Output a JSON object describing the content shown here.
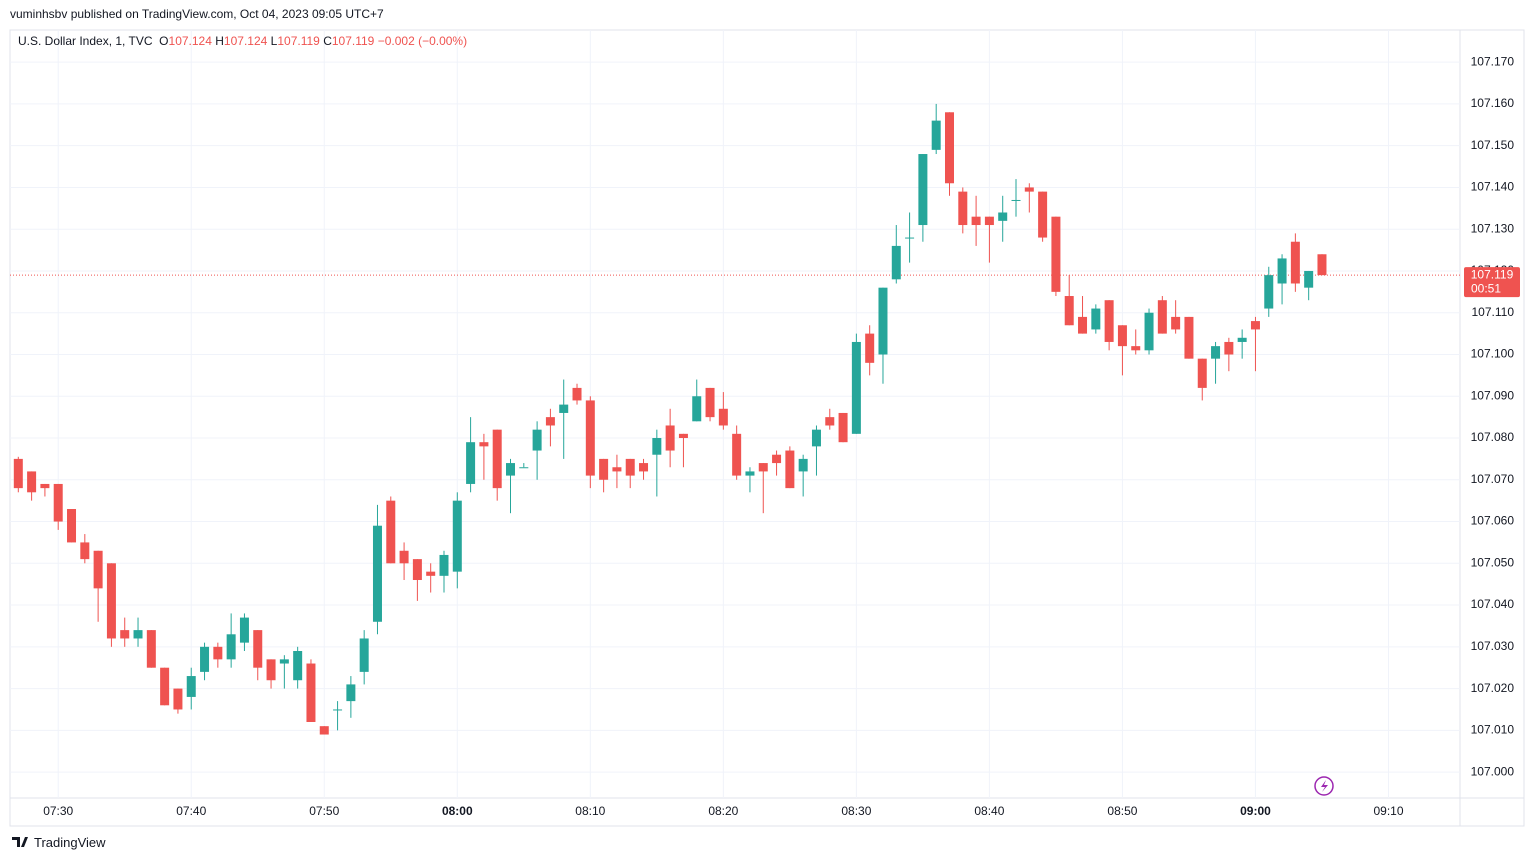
{
  "header": {
    "publisher": "vuminhsbv published on TradingView.com, Oct 04, 2023 09:05 UTC+7"
  },
  "legend": {
    "symbol": "U.S. Dollar Index, 1, TVC",
    "o_label": "O",
    "o": "107.124",
    "h_label": "H",
    "h": "107.124",
    "l_label": "L",
    "l": "107.119",
    "c_label": "C",
    "c": "107.119",
    "change": "−0.002 (−0.00%)"
  },
  "footer": {
    "brand": "TradingView"
  },
  "chart_data": {
    "type": "candlestick",
    "up_color": "#26a69a",
    "down_color": "#ef5350",
    "grid": true,
    "x": [
      "07:27",
      "07:28",
      "07:29",
      "07:30",
      "07:31",
      "07:32",
      "07:33",
      "07:34",
      "07:35",
      "07:36",
      "07:37",
      "07:38",
      "07:39",
      "07:40",
      "07:41",
      "07:42",
      "07:43",
      "07:44",
      "07:45",
      "07:46",
      "07:47",
      "07:48",
      "07:49",
      "07:50",
      "07:51",
      "07:52",
      "07:53",
      "07:54",
      "07:55",
      "07:56",
      "07:57",
      "07:58",
      "07:59",
      "08:00",
      "08:01",
      "08:02",
      "08:03",
      "08:04",
      "08:05",
      "08:06",
      "08:07",
      "08:08",
      "08:09",
      "08:10",
      "08:11",
      "08:12",
      "08:13",
      "08:14",
      "08:15",
      "08:16",
      "08:17",
      "08:18",
      "08:19",
      "08:20",
      "08:21",
      "08:22",
      "08:23",
      "08:24",
      "08:25",
      "08:26",
      "08:27",
      "08:28",
      "08:29",
      "08:30",
      "08:31",
      "08:32",
      "08:33",
      "08:34",
      "08:35",
      "08:36",
      "08:37",
      "08:38",
      "08:39",
      "08:40",
      "08:41",
      "08:42",
      "08:43",
      "08:44",
      "08:45",
      "08:46",
      "08:47",
      "08:48",
      "08:49",
      "08:50",
      "08:51",
      "08:52",
      "08:53",
      "08:54",
      "08:55",
      "08:56",
      "08:57",
      "08:58",
      "08:59",
      "09:00",
      "09:01",
      "09:02",
      "09:03",
      "09:04",
      "09:05"
    ],
    "open": [
      107.075,
      107.072,
      107.069,
      107.069,
      107.063,
      107.055,
      107.053,
      107.05,
      107.034,
      107.032,
      107.034,
      107.025,
      107.02,
      107.018,
      107.024,
      107.03,
      107.027,
      107.031,
      107.034,
      107.027,
      107.026,
      107.022,
      107.026,
      107.011,
      107.015,
      107.017,
      107.024,
      107.036,
      107.065,
      107.053,
      107.051,
      107.048,
      107.047,
      107.048,
      107.069,
      107.079,
      107.082,
      107.071,
      107.073,
      107.077,
      107.085,
      107.086,
      107.092,
      107.089,
      107.075,
      107.073,
      107.075,
      107.074,
      107.076,
      107.083,
      107.081,
      107.084,
      107.092,
      107.087,
      107.081,
      107.071,
      107.074,
      107.076,
      107.077,
      107.072,
      107.078,
      107.085,
      107.086,
      107.081,
      107.105,
      107.1,
      107.118,
      107.128,
      107.131,
      107.149,
      107.158,
      107.139,
      107.133,
      107.133,
      107.132,
      107.137,
      107.14,
      107.139,
      107.133,
      107.114,
      107.109,
      107.106,
      107.113,
      107.107,
      107.102,
      107.101,
      107.113,
      107.109,
      107.109,
      107.099,
      107.099,
      107.103,
      107.103,
      107.108,
      107.111,
      107.117,
      107.127,
      107.116,
      107.124
    ],
    "high": [
      107.0755,
      107.072,
      107.069,
      107.069,
      107.063,
      107.057,
      107.053,
      107.05,
      107.037,
      107.037,
      107.034,
      107.025,
      107.02,
      107.025,
      107.031,
      107.031,
      107.038,
      107.038,
      107.034,
      107.027,
      107.028,
      107.03,
      107.027,
      107.011,
      107.017,
      107.023,
      107.034,
      107.064,
      107.066,
      107.055,
      107.051,
      107.05,
      107.053,
      107.067,
      107.085,
      107.081,
      107.082,
      107.075,
      107.074,
      107.084,
      107.087,
      107.094,
      107.093,
      107.09,
      107.075,
      107.076,
      107.075,
      107.075,
      107.082,
      107.087,
      107.081,
      107.094,
      107.092,
      107.091,
      107.083,
      107.073,
      107.074,
      107.077,
      107.078,
      107.076,
      107.083,
      107.087,
      107.086,
      107.105,
      107.107,
      107.116,
      107.131,
      107.134,
      107.148,
      107.16,
      107.158,
      107.14,
      107.138,
      107.133,
      107.138,
      107.142,
      107.141,
      107.139,
      107.133,
      107.119,
      107.114,
      107.112,
      107.113,
      107.107,
      107.106,
      107.111,
      107.114,
      107.113,
      107.109,
      107.099,
      107.103,
      107.104,
      107.106,
      107.109,
      107.121,
      107.124,
      107.129,
      107.12,
      107.124
    ],
    "low": [
      107.067,
      107.065,
      107.066,
      107.058,
      107.055,
      107.05,
      107.036,
      107.03,
      107.03,
      107.03,
      107.025,
      107.016,
      107.014,
      107.015,
      107.022,
      107.025,
      107.025,
      107.029,
      107.022,
      107.02,
      107.02,
      107.02,
      107.012,
      107.009,
      107.01,
      107.013,
      107.021,
      107.033,
      107.05,
      107.046,
      107.041,
      107.043,
      107.043,
      107.044,
      107.067,
      107.07,
      107.065,
      107.062,
      107.073,
      107.07,
      107.078,
      107.075,
      107.088,
      107.068,
      107.067,
      107.068,
      107.068,
      107.07,
      107.066,
      107.073,
      107.073,
      107.084,
      107.084,
      107.082,
      107.07,
      107.067,
      107.062,
      107.071,
      107.068,
      107.066,
      107.071,
      107.082,
      107.079,
      107.081,
      107.095,
      107.093,
      107.117,
      107.122,
      107.127,
      107.148,
      107.138,
      107.129,
      107.126,
      107.122,
      107.127,
      107.133,
      107.134,
      107.127,
      107.114,
      107.107,
      107.105,
      107.105,
      107.101,
      107.095,
      107.1,
      107.1,
      107.105,
      107.105,
      107.099,
      107.089,
      107.093,
      107.096,
      107.099,
      107.096,
      107.109,
      107.112,
      107.115,
      107.113,
      107.119
    ],
    "close": [
      107.068,
      107.067,
      107.068,
      107.06,
      107.055,
      107.051,
      107.044,
      107.032,
      107.032,
      107.034,
      107.025,
      107.016,
      107.015,
      107.023,
      107.03,
      107.027,
      107.033,
      107.037,
      107.025,
      107.022,
      107.027,
      107.029,
      107.012,
      107.009,
      107.015,
      107.021,
      107.032,
      107.059,
      107.05,
      107.05,
      107.046,
      107.047,
      107.052,
      107.065,
      107.079,
      107.078,
      107.068,
      107.074,
      107.073,
      107.082,
      107.083,
      107.088,
      107.089,
      107.071,
      107.07,
      107.072,
      107.071,
      107.072,
      107.08,
      107.077,
      107.08,
      107.09,
      107.085,
      107.083,
      107.071,
      107.072,
      107.072,
      107.074,
      107.068,
      107.075,
      107.082,
      107.083,
      107.079,
      107.103,
      107.098,
      107.116,
      107.126,
      107.128,
      107.148,
      107.156,
      107.141,
      107.131,
      107.131,
      107.131,
      107.134,
      107.137,
      107.139,
      107.128,
      107.115,
      107.107,
      107.105,
      107.111,
      107.103,
      107.102,
      107.101,
      107.11,
      107.105,
      107.106,
      107.099,
      107.092,
      107.102,
      107.1,
      107.104,
      107.106,
      107.119,
      107.123,
      107.117,
      107.12,
      107.119
    ],
    "xlim": [
      "07:26",
      "09:15"
    ],
    "xticks": [
      "07:30",
      "07:40",
      "07:50",
      "08:00",
      "08:10",
      "08:20",
      "08:30",
      "08:40",
      "08:50",
      "09:00",
      "09:10"
    ],
    "ylim": [
      106.9938,
      107.1777
    ],
    "yticks": [
      {
        "value": 107.0,
        "label": "107.000"
      },
      {
        "value": 107.01,
        "label": "107.010"
      },
      {
        "value": 107.02,
        "label": "107.020"
      },
      {
        "value": 107.03,
        "label": "107.030"
      },
      {
        "value": 107.04,
        "label": "107.040"
      },
      {
        "value": 107.05,
        "label": "107.050"
      },
      {
        "value": 107.06,
        "label": "107.060"
      },
      {
        "value": 107.07,
        "label": "107.070"
      },
      {
        "value": 107.08,
        "label": "107.080"
      },
      {
        "value": 107.09,
        "label": "107.090"
      },
      {
        "value": 107.1,
        "label": "107.100"
      },
      {
        "value": 107.11,
        "label": "107.110"
      },
      {
        "value": 107.12,
        "label": "107.120"
      },
      {
        "value": 107.13,
        "label": "107.130"
      },
      {
        "value": 107.14,
        "label": "107.140"
      },
      {
        "value": 107.15,
        "label": "107.150"
      },
      {
        "value": 107.16,
        "label": "107.160"
      },
      {
        "value": 107.17,
        "label": "107.170"
      }
    ],
    "last_price": {
      "value": 107.119,
      "label": "107.119"
    },
    "countdown": "00:51"
  }
}
